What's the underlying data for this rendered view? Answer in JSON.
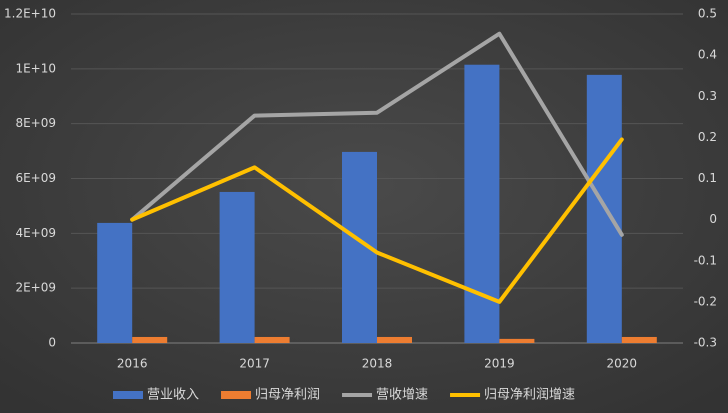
{
  "chart_data": {
    "type": "bar",
    "categories": [
      "2016",
      "2017",
      "2018",
      "2019",
      "2020"
    ],
    "series": [
      {
        "name": "营业收入",
        "type": "bar",
        "color": "#4472c4",
        "values": [
          4380000000,
          5510000000,
          6970000000,
          10150000000,
          9780000000
        ]
      },
      {
        "name": "归母净利润",
        "type": "bar",
        "color": "#ed7d31",
        "values": [
          220000000,
          220000000,
          220000000,
          150000000,
          220000000
        ]
      },
      {
        "name": "营收增速",
        "type": "line",
        "axis": "y2",
        "color": "#a5a5a5",
        "values": [
          0,
          0.253,
          0.26,
          0.452,
          -0.037
        ]
      },
      {
        "name": "归母净利润增速",
        "type": "line",
        "axis": "y2",
        "color": "#ffc000",
        "values": [
          0,
          0.127,
          -0.08,
          -0.2,
          0.195
        ]
      }
    ],
    "ylim": [
      0,
      12000000000
    ],
    "yticks": [
      0,
      {
        "value": 2000000000,
        "label": "2E+09"
      },
      {
        "value": 4000000000,
        "label": "4E+09"
      },
      {
        "value": 6000000000,
        "label": "6E+09"
      },
      {
        "value": 8000000000,
        "label": "8E+09"
      },
      {
        "value": 10000000000,
        "label": "1E+10"
      },
      {
        "value": 12000000000,
        "label": "1.2E+10"
      }
    ],
    "y2lim": [
      -0.3,
      0.5
    ],
    "y2ticks": [
      -0.3,
      -0.2,
      -0.1,
      0,
      0.1,
      0.2,
      0.3,
      0.4,
      0.5
    ],
    "grid": true
  }
}
